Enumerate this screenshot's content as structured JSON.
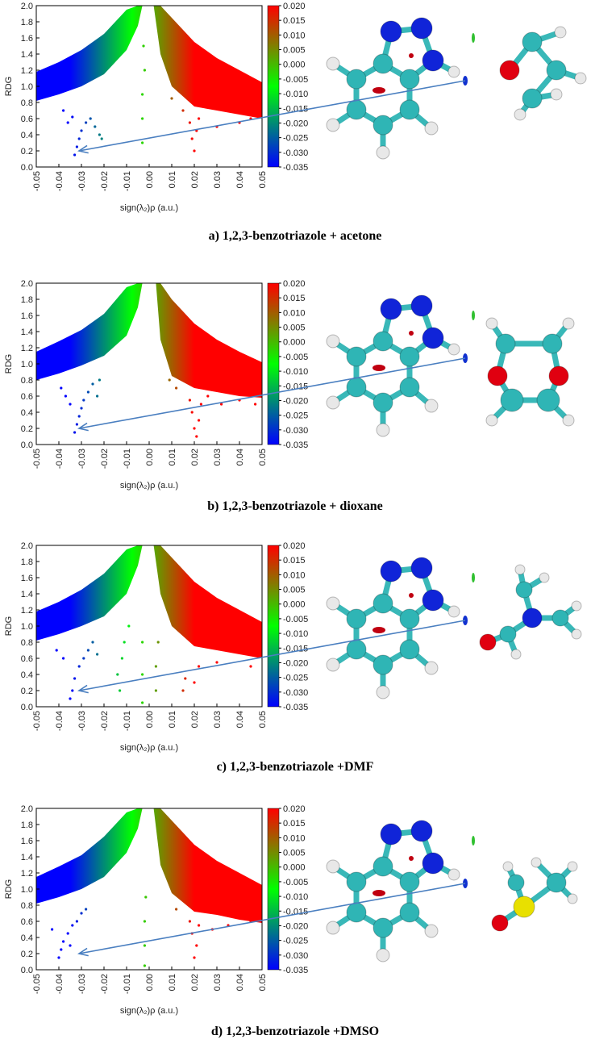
{
  "chart_data": [
    {
      "type": "scatter",
      "caption": "a) 1,2,3-benzotriazole + acetone",
      "xlabel": "sign(λ₂)ρ (a.u.)",
      "ylabel": "RDG",
      "xlim": [
        -0.05,
        0.05
      ],
      "xticks": [
        -0.05,
        -0.04,
        -0.03,
        -0.02,
        -0.01,
        {
          "value": 0,
          "label": "0.00"
        },
        0.01,
        0.02,
        0.03,
        0.04,
        0.05
      ],
      "ylim": [
        0,
        2
      ],
      "yticks": [
        {
          "value": 0,
          "label": "0.0"
        },
        0.2,
        0.4,
        0.6,
        0.8,
        {
          "value": 1,
          "label": "1.0"
        },
        1.2,
        1.4,
        1.6,
        1.8,
        {
          "value": 2,
          "label": "2.0"
        }
      ],
      "clim": [
        -0.035,
        0.02
      ],
      "colors": [
        "#0000ff",
        "#00ff00",
        "#ff0000"
      ],
      "cticks": [
        {
          "value": 0.02,
          "label": "0.020"
        },
        {
          "value": 0.015,
          "label": "0.015"
        },
        {
          "value": 0.01,
          "label": "0.010"
        },
        {
          "value": 0.005,
          "label": "0.005"
        },
        {
          "value": 0,
          "label": "0.000"
        },
        {
          "value": -0.005,
          "label": "-0.005"
        },
        {
          "value": -0.01,
          "label": "-0.010"
        },
        {
          "value": -0.015,
          "label": "-0.015"
        },
        {
          "value": -0.02,
          "label": "-0.020"
        },
        {
          "value": -0.025,
          "label": "-0.025"
        },
        {
          "value": -0.03,
          "label": "-0.030"
        },
        {
          "value": -0.035,
          "label": "-0.035"
        }
      ],
      "bands": [
        {
          "x": [
            -0.05,
            -0.04,
            -0.03,
            -0.02,
            -0.01,
            -0.005,
            -0.003
          ],
          "lower": [
            0.82,
            0.9,
            1.0,
            1.15,
            1.45,
            1.75,
            2.0
          ],
          "upper": [
            1.18,
            1.3,
            1.45,
            1.65,
            1.95,
            2.0,
            2.0
          ]
        },
        {
          "x": [
            0.002,
            0.005,
            0.01,
            0.02,
            0.03,
            0.04,
            0.05
          ],
          "lower": [
            2.0,
            1.4,
            1.0,
            0.75,
            0.7,
            0.65,
            0.6
          ],
          "upper": [
            2.0,
            2.0,
            1.85,
            1.55,
            1.35,
            1.2,
            1.05
          ]
        }
      ],
      "x": [
        -0.033,
        -0.032,
        -0.031,
        -0.03,
        -0.028,
        -0.026,
        -0.024,
        -0.022,
        -0.021,
        -0.036,
        -0.038,
        -0.034,
        -0.003,
        -0.003,
        -0.003,
        -0.002,
        -0.0025,
        0.02,
        0.019,
        0.021,
        0.018,
        0.022,
        0.03,
        0.04,
        0.045,
        0.015,
        0.01
      ],
      "values": [
        0.15,
        0.25,
        0.35,
        0.45,
        0.55,
        0.6,
        0.5,
        0.4,
        0.35,
        0.55,
        0.7,
        0.62,
        0.3,
        0.6,
        0.9,
        1.2,
        1.5,
        0.2,
        0.35,
        0.45,
        0.55,
        0.6,
        0.5,
        0.55,
        0.6,
        0.7,
        0.85
      ]
    },
    {
      "type": "scatter",
      "caption": "b) 1,2,3-benzotriazole + dioxane",
      "xlabel": "sign(λ₂)ρ (a.u.)",
      "ylabel": "RDG",
      "xlim": [
        -0.05,
        0.05
      ],
      "xticks": [
        -0.05,
        -0.04,
        -0.03,
        -0.02,
        -0.01,
        {
          "value": 0,
          "label": "0.00"
        },
        0.01,
        0.02,
        0.03,
        0.04,
        0.05
      ],
      "ylim": [
        0,
        2
      ],
      "yticks": [
        {
          "value": 0,
          "label": "0.0"
        },
        0.2,
        0.4,
        0.6,
        0.8,
        {
          "value": 1,
          "label": "1.0"
        },
        1.2,
        1.4,
        1.6,
        1.8,
        {
          "value": 2,
          "label": "2.0"
        }
      ],
      "clim": [
        -0.035,
        0.02
      ],
      "colors": [
        "#0000ff",
        "#00ff00",
        "#ff0000"
      ],
      "cticks": [
        {
          "value": 0.02,
          "label": "0.020"
        },
        {
          "value": 0.015,
          "label": "0.015"
        },
        {
          "value": 0.01,
          "label": "0.010"
        },
        {
          "value": 0.005,
          "label": "0.005"
        },
        {
          "value": 0,
          "label": "0.000"
        },
        {
          "value": -0.005,
          "label": "-0.005"
        },
        {
          "value": -0.01,
          "label": "-0.010"
        },
        {
          "value": -0.015,
          "label": "-0.015"
        },
        {
          "value": -0.02,
          "label": "-0.020"
        },
        {
          "value": -0.025,
          "label": "-0.025"
        },
        {
          "value": -0.03,
          "label": "-0.030"
        },
        {
          "value": -0.035,
          "label": "-0.035"
        }
      ],
      "bands": [
        {
          "x": [
            -0.05,
            -0.04,
            -0.03,
            -0.02,
            -0.01,
            -0.005,
            -0.003
          ],
          "lower": [
            0.8,
            0.88,
            0.98,
            1.1,
            1.35,
            1.7,
            2.0
          ],
          "upper": [
            1.15,
            1.28,
            1.42,
            1.62,
            1.95,
            2.0,
            2.0
          ]
        },
        {
          "x": [
            0.003,
            0.005,
            0.01,
            0.02,
            0.03,
            0.04,
            0.05
          ],
          "lower": [
            2.0,
            1.3,
            0.85,
            0.7,
            0.65,
            0.6,
            0.58
          ],
          "upper": [
            2.0,
            2.0,
            1.8,
            1.5,
            1.3,
            1.15,
            1.02
          ]
        }
      ],
      "x": [
        -0.033,
        -0.032,
        -0.031,
        -0.03,
        -0.029,
        -0.027,
        -0.025,
        -0.023,
        -0.022,
        -0.035,
        -0.037,
        -0.039,
        0.021,
        0.02,
        0.022,
        0.019,
        0.023,
        0.018,
        0.026,
        0.032,
        0.04,
        0.047,
        0.012,
        0.009
      ],
      "values": [
        0.15,
        0.25,
        0.35,
        0.45,
        0.55,
        0.65,
        0.75,
        0.6,
        0.8,
        0.5,
        0.6,
        0.7,
        0.1,
        0.2,
        0.3,
        0.4,
        0.5,
        0.55,
        0.6,
        0.5,
        0.55,
        0.5,
        0.7,
        0.8
      ]
    },
    {
      "type": "scatter",
      "caption": "c) 1,2,3-benzotriazole +DMF",
      "xlabel": "sign(λ₂)ρ (a.u.)",
      "ylabel": "RDG",
      "xlim": [
        -0.05,
        0.05
      ],
      "xticks": [
        -0.05,
        -0.04,
        -0.03,
        -0.02,
        -0.01,
        {
          "value": 0,
          "label": "0.00"
        },
        0.01,
        0.02,
        0.03,
        0.04,
        0.05
      ],
      "ylim": [
        0,
        2
      ],
      "yticks": [
        {
          "value": 0,
          "label": "0.0"
        },
        0.2,
        0.4,
        0.6,
        0.8,
        {
          "value": 1,
          "label": "1.0"
        },
        1.2,
        1.4,
        1.6,
        1.8,
        {
          "value": 2,
          "label": "2.0"
        }
      ],
      "clim": [
        -0.035,
        0.02
      ],
      "colors": [
        "#0000ff",
        "#00ff00",
        "#ff0000"
      ],
      "cticks": [
        {
          "value": 0.02,
          "label": "0.020"
        },
        {
          "value": 0.015,
          "label": "0.015"
        },
        {
          "value": 0.01,
          "label": "0.010"
        },
        {
          "value": 0.005,
          "label": "0.005"
        },
        {
          "value": 0,
          "label": "0.000"
        },
        {
          "value": -0.005,
          "label": "-0.005"
        },
        {
          "value": -0.01,
          "label": "-0.010"
        },
        {
          "value": -0.015,
          "label": "-0.015"
        },
        {
          "value": -0.02,
          "label": "-0.020"
        },
        {
          "value": -0.025,
          "label": "-0.025"
        },
        {
          "value": -0.03,
          "label": "-0.030"
        },
        {
          "value": -0.035,
          "label": "-0.035"
        }
      ],
      "bands": [
        {
          "x": [
            -0.05,
            -0.04,
            -0.03,
            -0.02,
            -0.01,
            -0.005,
            -0.003
          ],
          "lower": [
            0.82,
            0.9,
            1.0,
            1.12,
            1.4,
            1.75,
            2.0
          ],
          "upper": [
            1.18,
            1.3,
            1.45,
            1.65,
            1.95,
            2.0,
            2.0
          ]
        },
        {
          "x": [
            0.002,
            0.005,
            0.01,
            0.02,
            0.03,
            0.04,
            0.05
          ],
          "lower": [
            2.0,
            1.4,
            1.0,
            0.75,
            0.7,
            0.65,
            0.6
          ],
          "upper": [
            2.0,
            2.0,
            1.85,
            1.55,
            1.35,
            1.2,
            1.05
          ]
        }
      ],
      "x": [
        -0.035,
        -0.034,
        -0.033,
        -0.031,
        -0.029,
        -0.027,
        -0.025,
        -0.023,
        -0.038,
        -0.041,
        -0.013,
        -0.014,
        -0.012,
        -0.011,
        -0.009,
        -0.003,
        -0.003,
        -0.003,
        0.003,
        0.003,
        0.004,
        0.015,
        0.016,
        0.02,
        0.022,
        0.03,
        0.045
      ],
      "values": [
        0.1,
        0.2,
        0.35,
        0.5,
        0.6,
        0.7,
        0.8,
        0.65,
        0.6,
        0.7,
        0.2,
        0.4,
        0.6,
        0.8,
        1.0,
        0.05,
        0.4,
        0.8,
        0.2,
        0.5,
        0.8,
        0.2,
        0.35,
        0.3,
        0.5,
        0.55,
        0.5
      ]
    },
    {
      "type": "scatter",
      "caption": "d) 1,2,3-benzotriazole +DMSO",
      "xlabel": "sign(λ₂)ρ (a.u.)",
      "ylabel": "RDG",
      "xlim": [
        -0.05,
        0.05
      ],
      "xticks": [
        -0.05,
        -0.04,
        -0.03,
        -0.02,
        -0.01,
        {
          "value": 0,
          "label": "0.00"
        },
        0.01,
        0.02,
        0.03,
        0.04,
        0.05
      ],
      "ylim": [
        0,
        2
      ],
      "yticks": [
        {
          "value": 0,
          "label": "0.0"
        },
        0.2,
        0.4,
        0.6,
        0.8,
        {
          "value": 1,
          "label": "1.0"
        },
        1.2,
        1.4,
        1.6,
        1.8,
        {
          "value": 2,
          "label": "2.0"
        }
      ],
      "clim": [
        -0.035,
        0.02
      ],
      "colors": [
        "#0000ff",
        "#00ff00",
        "#ff0000"
      ],
      "cticks": [
        {
          "value": 0.02,
          "label": "0.020"
        },
        {
          "value": 0.015,
          "label": "0.015"
        },
        {
          "value": 0.01,
          "label": "0.010"
        },
        {
          "value": 0.005,
          "label": "0.005"
        },
        {
          "value": 0,
          "label": "0.000"
        },
        {
          "value": -0.005,
          "label": "-0.005"
        },
        {
          "value": -0.01,
          "label": "-0.010"
        },
        {
          "value": -0.015,
          "label": "-0.015"
        },
        {
          "value": -0.02,
          "label": "-0.020"
        },
        {
          "value": -0.025,
          "label": "-0.025"
        },
        {
          "value": -0.03,
          "label": "-0.030"
        },
        {
          "value": -0.035,
          "label": "-0.035"
        }
      ],
      "bands": [
        {
          "x": [
            -0.05,
            -0.04,
            -0.03,
            -0.02,
            -0.01,
            -0.005,
            -0.003
          ],
          "lower": [
            0.82,
            0.9,
            1.0,
            1.15,
            1.45,
            1.75,
            2.0
          ],
          "upper": [
            1.15,
            1.28,
            1.42,
            1.65,
            1.95,
            2.0,
            2.0
          ]
        },
        {
          "x": [
            0.002,
            0.005,
            0.01,
            0.02,
            0.03,
            0.04,
            0.05
          ],
          "lower": [
            2.0,
            1.3,
            0.95,
            0.72,
            0.68,
            0.62,
            0.58
          ],
          "upper": [
            2.0,
            2.0,
            1.85,
            1.55,
            1.35,
            1.2,
            1.05
          ]
        }
      ],
      "x": [
        -0.04,
        -0.039,
        -0.038,
        -0.036,
        -0.034,
        -0.032,
        -0.03,
        -0.028,
        -0.035,
        -0.043,
        -0.002,
        -0.002,
        -0.002,
        -0.0015,
        0.02,
        0.021,
        0.019,
        0.022,
        0.018,
        0.028,
        0.035,
        0.045,
        0.012
      ],
      "values": [
        0.15,
        0.25,
        0.35,
        0.45,
        0.55,
        0.6,
        0.7,
        0.75,
        0.3,
        0.5,
        0.05,
        0.3,
        0.6,
        0.9,
        0.15,
        0.3,
        0.45,
        0.55,
        0.6,
        0.5,
        0.55,
        0.6,
        0.75
      ]
    }
  ]
}
